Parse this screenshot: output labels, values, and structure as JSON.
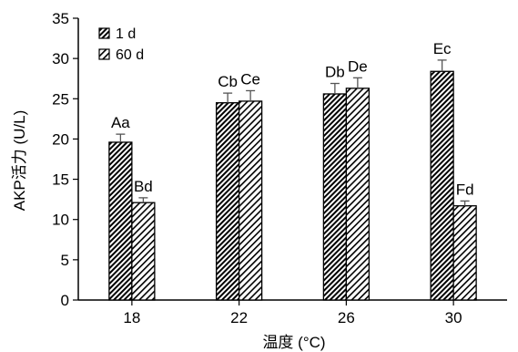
{
  "chart_data": {
    "type": "bar",
    "xlabel": "温度 (°C)",
    "ylabel": "AKP活力 (U/L)",
    "ylim": [
      0,
      35
    ],
    "yticks": [
      0,
      5,
      10,
      15,
      20,
      25,
      30,
      35
    ],
    "categories": [
      "18",
      "22",
      "26",
      "30"
    ],
    "series": [
      {
        "name": "1 d",
        "pattern": "dense-diagonal",
        "values": [
          19.6,
          24.5,
          25.6,
          28.4
        ],
        "errors": [
          1.0,
          1.2,
          1.3,
          1.4
        ],
        "labels": [
          "Aa",
          "Cb",
          "Db",
          "Ec"
        ]
      },
      {
        "name": "60 d",
        "pattern": "sparse-diagonal",
        "values": [
          12.1,
          24.7,
          26.3,
          11.7
        ],
        "errors": [
          0.6,
          1.3,
          1.3,
          0.6
        ],
        "labels": [
          "Bd",
          "Ce",
          "De",
          "Fd"
        ]
      }
    ],
    "legend_position": "top-left",
    "grid": false
  }
}
